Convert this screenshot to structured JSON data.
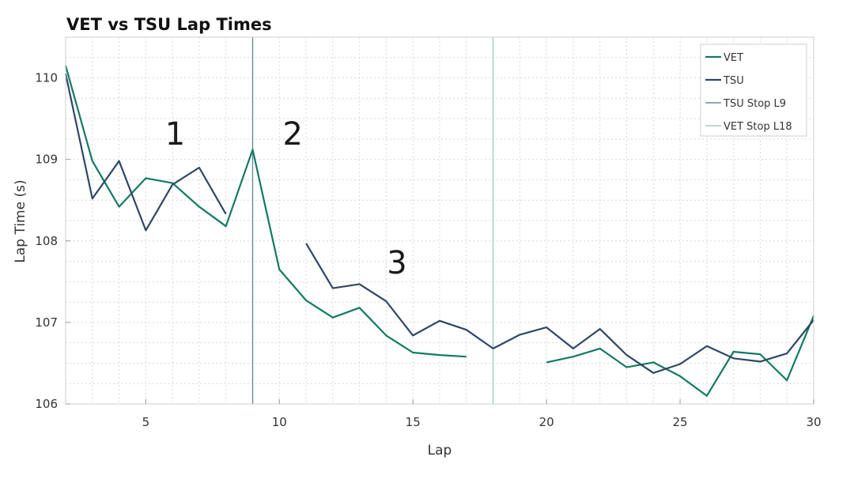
{
  "chart_data": {
    "type": "line",
    "title": "VET vs TSU Lap Times",
    "xlabel": "Lap",
    "ylabel": "Lap Time (s)",
    "xlim": [
      2,
      30
    ],
    "ylim": [
      106,
      110.5
    ],
    "xticks": [
      5,
      10,
      15,
      20,
      25,
      30
    ],
    "yticks": [
      106,
      107,
      108,
      109,
      110
    ],
    "grid": true,
    "legend_position": "top-right",
    "series": [
      {
        "name": "VET",
        "color": "#137a63",
        "x": [
          2,
          3,
          4,
          5,
          6,
          7,
          8,
          9,
          10,
          11,
          12,
          13,
          14,
          15,
          16,
          17,
          18,
          19,
          20,
          21,
          22,
          23,
          24,
          25,
          26,
          27,
          28,
          29,
          30
        ],
        "y": [
          110.15,
          108.98,
          108.42,
          108.77,
          108.71,
          108.42,
          108.18,
          109.12,
          107.65,
          107.27,
          107.06,
          107.18,
          106.84,
          106.63,
          106.6,
          106.58,
          null,
          null,
          106.51,
          106.58,
          106.68,
          106.45,
          106.51,
          106.34,
          106.1,
          106.64,
          106.61,
          106.29,
          107.08
        ]
      },
      {
        "name": "TSU",
        "color": "#2e4766",
        "x": [
          2,
          3,
          4,
          5,
          6,
          7,
          8,
          9,
          10,
          11,
          12,
          13,
          14,
          15,
          16,
          17,
          18,
          19,
          20,
          21,
          22,
          23,
          24,
          25,
          26,
          27,
          28,
          29,
          30
        ],
        "y": [
          110.05,
          108.52,
          108.98,
          108.13,
          108.69,
          108.9,
          108.33,
          null,
          null,
          107.97,
          107.42,
          107.47,
          107.26,
          106.84,
          107.02,
          106.91,
          106.68,
          106.85,
          106.94,
          106.68,
          106.92,
          106.6,
          106.38,
          106.49,
          106.71,
          106.56,
          106.52,
          106.62,
          107.03
        ]
      }
    ],
    "vlines": [
      {
        "name": "TSU Stop L9",
        "x": 9,
        "color": "#6f8a96"
      },
      {
        "name": "VET Stop L18",
        "x": 18,
        "color": "#9fd0c6"
      }
    ],
    "annotations": [
      {
        "text": "1",
        "x": 6.1,
        "y": 109.18
      },
      {
        "text": "2",
        "x": 10.5,
        "y": 109.18
      },
      {
        "text": "3",
        "x": 14.4,
        "y": 107.6
      }
    ]
  }
}
